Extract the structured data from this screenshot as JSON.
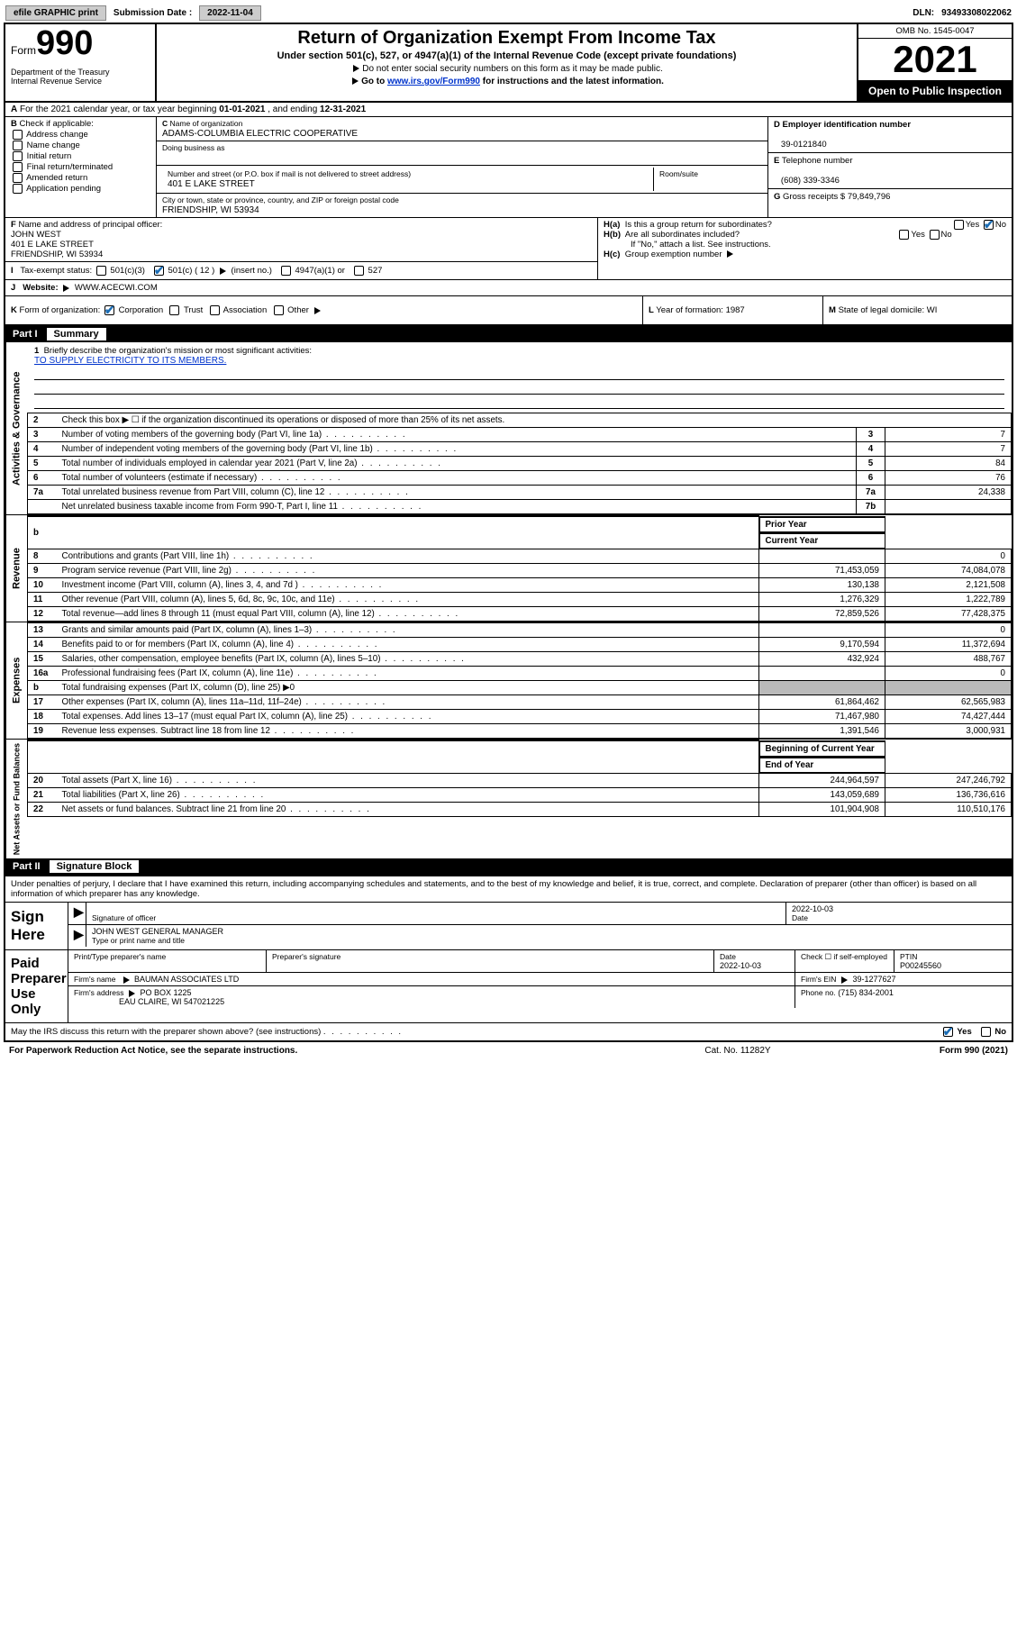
{
  "toolbar": {
    "efile": "efile GRAPHIC print",
    "sub_label": "Submission Date :",
    "sub_date": "2022-11-04",
    "dln_label": "DLN:",
    "dln": "93493308022062"
  },
  "hdr": {
    "form_word": "Form",
    "form_num": "990",
    "dept": "Department of the Treasury\nInternal Revenue Service",
    "title": "Return of Organization Exempt From Income Tax",
    "sub": "Under section 501(c), 527, or 4947(a)(1) of the Internal Revenue Code (except private foundations)",
    "hint1": "Do not enter social security numbers on this form as it may be made public.",
    "hint2_a": "Go to ",
    "hint2_link": "www.irs.gov/Form990",
    "hint2_b": " for instructions and the latest information.",
    "omb": "OMB No. 1545-0047",
    "year": "2021",
    "open": "Open to Public Inspection"
  },
  "rowA": {
    "text_a": "For the 2021 calendar year, or tax year beginning ",
    "beg": "01-01-2021",
    "text_b": " , and ending ",
    "end": "12-31-2021",
    "letter": "A"
  },
  "B": {
    "hdr": "Check if applicable:",
    "items": [
      "Address change",
      "Name change",
      "Initial return",
      "Final return/terminated",
      "Amended return",
      "Application pending"
    ],
    "letter": "B"
  },
  "C": {
    "name_lab": "Name of organization",
    "name": "ADAMS-COLUMBIA ELECTRIC COOPERATIVE",
    "dba_lab": "Doing business as",
    "addr_lab": "Number and street (or P.O. box if mail is not delivered to street address)",
    "room_lab": "Room/suite",
    "addr": "401 E LAKE STREET",
    "city_lab": "City or town, state or province, country, and ZIP or foreign postal code",
    "city": "FRIENDSHIP, WI  53934",
    "letter": "C"
  },
  "D": {
    "lab": "Employer identification number",
    "val": "39-0121840",
    "letter": "D"
  },
  "E": {
    "lab": "Telephone number",
    "val": "(608) 339-3346",
    "letter": "E"
  },
  "G": {
    "lab": "Gross receipts $",
    "val": "79,849,796",
    "letter": "G"
  },
  "F": {
    "lab": "Name and address of principal officer:",
    "name": "JOHN WEST",
    "addr": "401 E LAKE STREET\nFRIENDSHIP, WI  53934",
    "letter": "F"
  },
  "H": {
    "a": "Is this a group return for subordinates?",
    "b": "Are all subordinates included?",
    "b2": "If \"No,\" attach a list. See instructions.",
    "c": "Group exemption number",
    "yes": "Yes",
    "no": "No"
  },
  "I": {
    "lab": "Tax-exempt status:",
    "opts": [
      "501(c)(3)",
      "501(c) ( 12 )",
      "(insert no.)",
      "4947(a)(1) or",
      "527"
    ],
    "letter": "I"
  },
  "J": {
    "lab": "Website:",
    "val": "WWW.ACECWI.COM",
    "letter": "J"
  },
  "K": {
    "lab": "Form of organization:",
    "opts": [
      "Corporation",
      "Trust",
      "Association",
      "Other"
    ],
    "letter": "K"
  },
  "L": {
    "lab": "Year of formation:",
    "val": "1987",
    "letter": "L"
  },
  "M": {
    "lab": "State of legal domicile:",
    "val": "WI",
    "letter": "M"
  },
  "part1": {
    "num": "Part I",
    "title": "Summary"
  },
  "vlabels": [
    "Activities & Governance",
    "Revenue",
    "Expenses",
    "Net Assets or Fund Balances"
  ],
  "mission": {
    "num": "1",
    "lab": "Briefly describe the organization's mission or most significant activities:",
    "text": "TO SUPPLY ELECTRICITY TO ITS MEMBERS."
  },
  "gov_rows": [
    {
      "n": "2",
      "d": "Check this box ▶ ☐  if the organization discontinued its operations or disposed of more than 25% of its net assets.",
      "no_box": true
    },
    {
      "n": "3",
      "d": "Number of voting members of the governing body (Part VI, line 1a)",
      "box": "3",
      "v": "7"
    },
    {
      "n": "4",
      "d": "Number of independent voting members of the governing body (Part VI, line 1b)",
      "box": "4",
      "v": "7"
    },
    {
      "n": "5",
      "d": "Total number of individuals employed in calendar year 2021 (Part V, line 2a)",
      "box": "5",
      "v": "84"
    },
    {
      "n": "6",
      "d": "Total number of volunteers (estimate if necessary)",
      "box": "6",
      "v": "76"
    },
    {
      "n": "7a",
      "d": "Total unrelated business revenue from Part VIII, column (C), line 12",
      "box": "7a",
      "v": "24,338"
    },
    {
      "n": "",
      "d": "Net unrelated business taxable income from Form 990-T, Part I, line 11",
      "box": "7b",
      "v": ""
    }
  ],
  "cols": {
    "prior": "Prior Year",
    "current": "Current Year",
    "boy": "Beginning of Current Year",
    "eoy": "End of Year"
  },
  "rev_rows": [
    {
      "n": "8",
      "d": "Contributions and grants (Part VIII, line 1h)",
      "p": "",
      "c": "0"
    },
    {
      "n": "9",
      "d": "Program service revenue (Part VIII, line 2g)",
      "p": "71,453,059",
      "c": "74,084,078"
    },
    {
      "n": "10",
      "d": "Investment income (Part VIII, column (A), lines 3, 4, and 7d )",
      "p": "130,138",
      "c": "2,121,508"
    },
    {
      "n": "11",
      "d": "Other revenue (Part VIII, column (A), lines 5, 6d, 8c, 9c, 10c, and 11e)",
      "p": "1,276,329",
      "c": "1,222,789"
    },
    {
      "n": "12",
      "d": "Total revenue—add lines 8 through 11 (must equal Part VIII, column (A), line 12)",
      "p": "72,859,526",
      "c": "77,428,375"
    }
  ],
  "exp_rows": [
    {
      "n": "13",
      "d": "Grants and similar amounts paid (Part IX, column (A), lines 1–3)",
      "p": "",
      "c": "0"
    },
    {
      "n": "14",
      "d": "Benefits paid to or for members (Part IX, column (A), line 4)",
      "p": "9,170,594",
      "c": "11,372,694"
    },
    {
      "n": "15",
      "d": "Salaries, other compensation, employee benefits (Part IX, column (A), lines 5–10)",
      "p": "432,924",
      "c": "488,767"
    },
    {
      "n": "16a",
      "d": "Professional fundraising fees (Part IX, column (A), line 11e)",
      "p": "",
      "c": "0"
    },
    {
      "n": "b",
      "d": "Total fundraising expenses (Part IX, column (D), line 25) ▶0",
      "shade": true
    },
    {
      "n": "17",
      "d": "Other expenses (Part IX, column (A), lines 11a–11d, 11f–24e)",
      "p": "61,864,462",
      "c": "62,565,983"
    },
    {
      "n": "18",
      "d": "Total expenses. Add lines 13–17 (must equal Part IX, column (A), line 25)",
      "p": "71,467,980",
      "c": "74,427,444"
    },
    {
      "n": "19",
      "d": "Revenue less expenses. Subtract line 18 from line 12",
      "p": "1,391,546",
      "c": "3,000,931"
    }
  ],
  "net_rows": [
    {
      "n": "20",
      "d": "Total assets (Part X, line 16)",
      "p": "244,964,597",
      "c": "247,246,792"
    },
    {
      "n": "21",
      "d": "Total liabilities (Part X, line 26)",
      "p": "143,059,689",
      "c": "136,736,616"
    },
    {
      "n": "22",
      "d": "Net assets or fund balances. Subtract line 21 from line 20",
      "p": "101,904,908",
      "c": "110,510,176"
    }
  ],
  "part2": {
    "num": "Part II",
    "title": "Signature Block"
  },
  "sig": {
    "decl": "Under penalties of perjury, I declare that I have examined this return, including accompanying schedules and statements, and to the best of my knowledge and belief, it is true, correct, and complete. Declaration of preparer (other than officer) is based on all information of which preparer has any knowledge.",
    "sign_here": "Sign Here",
    "sig_officer": "Signature of officer",
    "date": "Date",
    "date_val": "2022-10-03",
    "officer": "JOHN WEST GENERAL MANAGER",
    "type_name": "Type or print name and title",
    "paid": "Paid Preparer Use Only",
    "prep_name_lab": "Print/Type preparer's name",
    "prep_sig_lab": "Preparer's signature",
    "prep_date_lab": "Date",
    "prep_date": "2022-10-03",
    "check_if": "Check ☐ if self-employed",
    "ptin_lab": "PTIN",
    "ptin": "P00245560",
    "firm_name_lab": "Firm's name",
    "firm_name": "BAUMAN ASSOCIATES LTD",
    "firm_ein_lab": "Firm's EIN",
    "firm_ein": "39-1277627",
    "firm_addr_lab": "Firm's address",
    "firm_addr1": "PO BOX 1225",
    "firm_addr2": "EAU CLAIRE, WI  547021225",
    "phone_lab": "Phone no.",
    "phone": "(715) 834-2001",
    "may": "May the IRS discuss this return with the preparer shown above? (see instructions)"
  },
  "footer": {
    "left": "For Paperwork Reduction Act Notice, see the separate instructions.",
    "mid": "Cat. No. 11282Y",
    "right_a": "Form ",
    "right_b": "990",
    "right_c": " (2021)"
  }
}
